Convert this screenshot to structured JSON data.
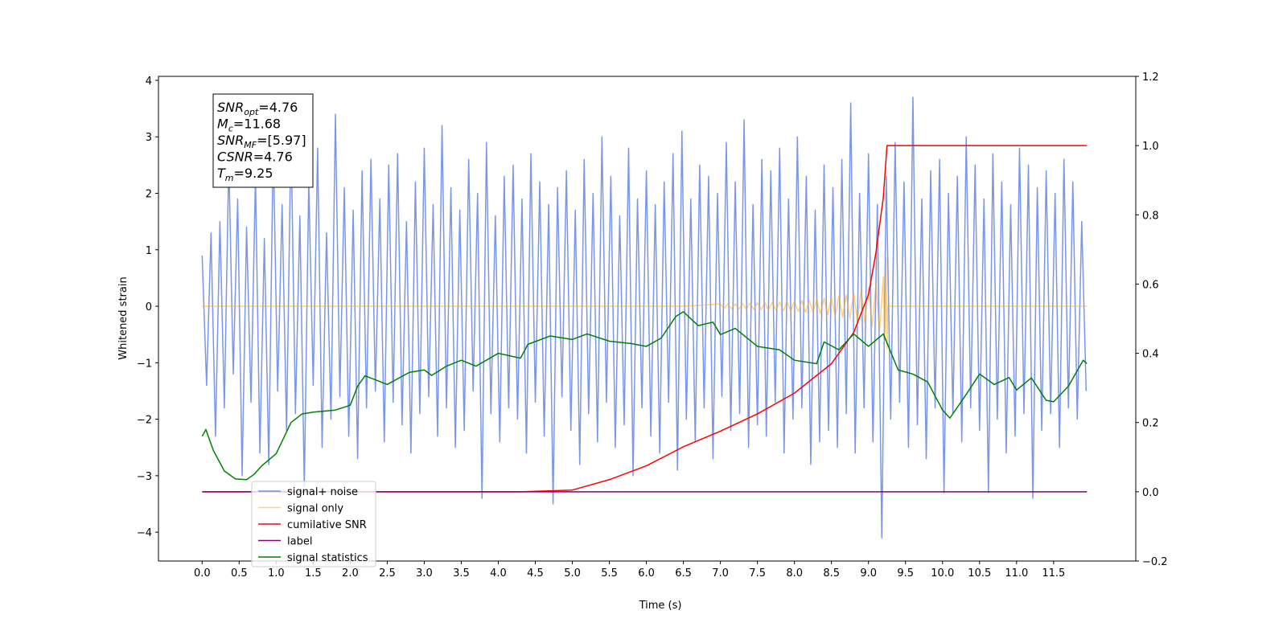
{
  "chart_data": {
    "type": "line",
    "xlabel": "Time (s)",
    "ylabel": "Whitened strain",
    "xlim": [
      -0.59,
      12.61
    ],
    "ylim": [
      -4.51,
      4.07
    ],
    "y2lim": [
      -0.2,
      1.2
    ],
    "xticks": [
      {
        "value": 0,
        "label": "0.0"
      },
      {
        "value": 0.5,
        "label": "0.5"
      },
      {
        "value": 1,
        "label": "1.0"
      },
      {
        "value": 1.5,
        "label": "1.5"
      },
      {
        "value": 2,
        "label": "2.0"
      },
      {
        "value": 2.5,
        "label": "2.5"
      },
      {
        "value": 3,
        "label": "3.0"
      },
      {
        "value": 3.5,
        "label": "3.5"
      },
      {
        "value": 4,
        "label": "4.0"
      },
      {
        "value": 4.5,
        "label": "4.5"
      },
      {
        "value": 5,
        "label": "5.0"
      },
      {
        "value": 5.5,
        "label": "5.5"
      },
      {
        "value": 6,
        "label": "6.0"
      },
      {
        "value": 6.5,
        "label": "6.5"
      },
      {
        "value": 7,
        "label": "7.0"
      },
      {
        "value": 7.5,
        "label": "7.5"
      },
      {
        "value": 8,
        "label": "8.0"
      },
      {
        "value": 8.5,
        "label": "8.5"
      },
      {
        "value": 9,
        "label": "9.0"
      },
      {
        "value": 9.5,
        "label": "9.5"
      },
      {
        "value": 10,
        "label": "10.0"
      },
      {
        "value": 10.5,
        "label": "10.5"
      },
      {
        "value": 11,
        "label": "11.0"
      },
      {
        "value": 11.5,
        "label": "11.5"
      }
    ],
    "yticks": [
      {
        "value": -4,
        "label": "−4"
      },
      {
        "value": -3,
        "label": "−3"
      },
      {
        "value": -2,
        "label": "−2"
      },
      {
        "value": -1,
        "label": "−1"
      },
      0,
      1,
      2,
      3,
      4
    ],
    "y2ticks": [
      {
        "value": -0.2,
        "label": "−0.2"
      },
      {
        "value": 0,
        "label": "0.0"
      },
      {
        "value": 0.2,
        "label": "0.2"
      },
      {
        "value": 0.4,
        "label": "0.4"
      },
      {
        "value": 0.6,
        "label": "0.6"
      },
      {
        "value": 0.8,
        "label": "0.8"
      },
      {
        "value": 1,
        "label": "1.0"
      },
      {
        "value": 1.2,
        "label": "1.2"
      }
    ],
    "annotations": [
      {
        "symbol": "SNR",
        "sub": "opt",
        "text": "=4.76"
      },
      {
        "symbol": "M",
        "sub": "c",
        "text": "=11.68"
      },
      {
        "symbol": "SNR",
        "sub": "MF",
        "text": "=[5.97]"
      },
      {
        "symbol": "CSNR",
        "text": "=4.76"
      },
      {
        "symbol": "T",
        "sub": "m",
        "text": "=9.25"
      }
    ],
    "series": [
      {
        "name": "signal+ noise",
        "color": "#4169e1",
        "opacity": 0.7,
        "x": [
          0,
          0.06,
          0.12,
          0.18,
          0.24,
          0.3,
          0.36,
          0.42,
          0.48,
          0.54,
          0.6,
          0.66,
          0.72,
          0.78,
          0.84,
          0.9,
          0.96,
          1.02,
          1.08,
          1.14,
          1.2,
          1.26,
          1.32,
          1.38,
          1.44,
          1.5,
          1.56,
          1.62,
          1.68,
          1.74,
          1.8,
          1.86,
          1.92,
          1.98,
          2.04,
          2.1,
          2.16,
          2.22,
          2.28,
          2.34,
          2.4,
          2.46,
          2.52,
          2.58,
          2.64,
          2.7,
          2.76,
          2.82,
          2.88,
          2.94,
          3.0,
          3.06,
          3.12,
          3.18,
          3.24,
          3.3,
          3.36,
          3.42,
          3.48,
          3.54,
          3.6,
          3.66,
          3.72,
          3.78,
          3.84,
          3.9,
          3.96,
          4.02,
          4.08,
          4.14,
          4.2,
          4.26,
          4.32,
          4.38,
          4.44,
          4.5,
          4.56,
          4.62,
          4.68,
          4.74,
          4.8,
          4.86,
          4.92,
          4.98,
          5.04,
          5.1,
          5.16,
          5.22,
          5.28,
          5.34,
          5.4,
          5.46,
          5.52,
          5.58,
          5.64,
          5.7,
          5.76,
          5.82,
          5.88,
          5.94,
          6.0,
          6.06,
          6.12,
          6.18,
          6.24,
          6.3,
          6.36,
          6.42,
          6.48,
          6.54,
          6.6,
          6.66,
          6.72,
          6.78,
          6.84,
          6.9,
          6.96,
          7.02,
          7.08,
          7.14,
          7.2,
          7.26,
          7.32,
          7.38,
          7.44,
          7.5,
          7.56,
          7.62,
          7.68,
          7.74,
          7.8,
          7.86,
          7.92,
          7.98,
          8.04,
          8.1,
          8.16,
          8.22,
          8.28,
          8.34,
          8.4,
          8.46,
          8.52,
          8.58,
          8.64,
          8.7,
          8.76,
          8.82,
          8.88,
          8.94,
          9.0,
          9.06,
          9.12,
          9.18,
          9.24,
          9.3,
          9.36,
          9.42,
          9.48,
          9.54,
          9.6,
          9.66,
          9.72,
          9.78,
          9.84,
          9.9,
          9.96,
          10.02,
          10.08,
          10.14,
          10.2,
          10.26,
          10.32,
          10.38,
          10.44,
          10.5,
          10.56,
          10.62,
          10.68,
          10.74,
          10.8,
          10.86,
          10.92,
          10.98,
          11.04,
          11.1,
          11.16,
          11.22,
          11.28,
          11.34,
          11.4,
          11.46,
          11.52,
          11.58,
          11.64,
          11.7,
          11.76,
          11.82,
          11.88,
          11.94
        ],
        "values": [
          0.9,
          -1.4,
          1.3,
          -2.3,
          1.5,
          -1.8,
          2.6,
          -1.2,
          1.9,
          -3.0,
          1.4,
          -1.7,
          2.3,
          -2.6,
          1.2,
          -2.8,
          2.9,
          -1.5,
          1.8,
          -2.2,
          3.1,
          -1.9,
          1.6,
          -3.2,
          2.2,
          -1.4,
          2.8,
          -2.5,
          1.3,
          -2.0,
          3.4,
          -1.6,
          2.1,
          -2.3,
          1.7,
          -2.7,
          2.4,
          -1.8,
          2.6,
          -1.5,
          1.9,
          -2.4,
          2.5,
          -1.7,
          2.7,
          -2.1,
          1.5,
          -2.6,
          2.2,
          -1.9,
          2.8,
          -1.6,
          1.8,
          -2.3,
          3.2,
          -1.8,
          2.1,
          -2.5,
          1.7,
          -2.2,
          2.6,
          -1.5,
          2.0,
          -3.4,
          2.9,
          -1.9,
          1.6,
          -2.4,
          2.3,
          -1.8,
          2.5,
          -2.0,
          1.9,
          -2.6,
          2.7,
          -1.7,
          2.2,
          -2.3,
          1.8,
          -3.5,
          2.1,
          -1.6,
          2.4,
          -2.2,
          1.7,
          -2.8,
          2.6,
          -1.9,
          2.0,
          -2.4,
          3.0,
          -1.7,
          2.3,
          -2.5,
          1.6,
          -2.1,
          2.8,
          -3.0,
          1.9,
          -1.8,
          2.4,
          -2.3,
          1.8,
          -2.6,
          2.2,
          -1.7,
          2.7,
          -2.9,
          3.1,
          -2.0,
          1.9,
          -2.4,
          2.5,
          -1.8,
          2.3,
          -2.7,
          2.0,
          -1.6,
          2.9,
          -2.2,
          2.2,
          -1.9,
          3.3,
          -2.5,
          1.8,
          -2.1,
          2.6,
          -2.3,
          2.4,
          -1.7,
          2.8,
          -2.6,
          1.9,
          -2.0,
          3.0,
          -1.8,
          2.3,
          -2.8,
          1.7,
          -2.4,
          2.5,
          -2.2,
          2.1,
          -2.5,
          2.6,
          -1.9,
          3.6,
          -2.6,
          2.0,
          -1.8,
          2.7,
          -2.4,
          1.8,
          -4.1,
          2.3,
          -2.0,
          2.9,
          -1.7,
          2.2,
          -2.5,
          3.7,
          -2.1,
          1.9,
          -2.7,
          2.4,
          -1.8,
          2.6,
          -3.3,
          2.0,
          -1.9,
          2.3,
          -2.4,
          3.0,
          -1.8,
          2.5,
          -2.2,
          1.9,
          -3.3,
          2.7,
          -2.0,
          2.2,
          -2.6,
          1.8,
          -2.3,
          2.8,
          -1.9,
          2.5,
          -3.4,
          2.1,
          -2.2,
          2.4,
          -1.9,
          2.0,
          -2.5,
          2.6,
          -1.8,
          2.2,
          -2.0,
          1.5,
          -1.5
        ]
      },
      {
        "name": "signal only",
        "color": "#ffa500",
        "opacity": 0.5,
        "x": [
          0,
          6.5,
          7.0,
          7.05,
          7.1,
          7.15,
          7.2,
          7.25,
          7.3,
          7.35,
          7.4,
          7.45,
          7.5,
          7.55,
          7.6,
          7.65,
          7.7,
          7.75,
          7.8,
          7.85,
          7.9,
          7.95,
          8.0,
          8.05,
          8.1,
          8.15,
          8.2,
          8.25,
          8.3,
          8.35,
          8.4,
          8.45,
          8.5,
          8.55,
          8.6,
          8.65,
          8.7,
          8.75,
          8.8,
          8.85,
          8.9,
          8.95,
          9.0,
          9.05,
          9.1,
          9.15,
          9.2,
          9.22,
          9.24,
          9.25,
          9.26,
          11.95
        ],
        "values": [
          0,
          0,
          0.04,
          -0.04,
          0.04,
          -0.045,
          0.045,
          -0.05,
          0.05,
          -0.05,
          0.055,
          -0.055,
          0.06,
          -0.06,
          0.065,
          -0.065,
          0.07,
          -0.07,
          0.075,
          -0.08,
          0.08,
          -0.085,
          0.09,
          -0.095,
          0.1,
          -0.105,
          0.11,
          -0.115,
          0.12,
          -0.13,
          0.14,
          -0.15,
          0.16,
          -0.17,
          0.18,
          -0.19,
          0.2,
          -0.22,
          0.24,
          -0.26,
          0.28,
          -0.3,
          0.32,
          -0.35,
          0.4,
          -0.45,
          0.52,
          -0.6,
          0.85,
          -0.75,
          0,
          0
        ]
      },
      {
        "name": "cumilative SNR",
        "color": "#ff0000",
        "axis": "y2",
        "x": [
          0,
          4.3,
          5.0,
          5.5,
          6.0,
          6.5,
          7.0,
          7.5,
          8.0,
          8.5,
          8.8,
          9.0,
          9.1,
          9.2,
          9.25,
          11.95
        ],
        "values": [
          0,
          0,
          0.005,
          0.035,
          0.075,
          0.13,
          0.175,
          0.225,
          0.285,
          0.37,
          0.46,
          0.57,
          0.69,
          0.85,
          1.0,
          1.0
        ]
      },
      {
        "name": "label",
        "color": "#800080",
        "axis": "y2",
        "x": [
          0,
          11.95
        ],
        "values": [
          0,
          0
        ]
      },
      {
        "name": "signal statistics",
        "color": "#008000",
        "axis": "y2",
        "x": [
          0,
          0.05,
          0.15,
          0.3,
          0.45,
          0.6,
          0.7,
          0.8,
          1.0,
          1.1,
          1.2,
          1.35,
          1.5,
          1.8,
          2.0,
          2.1,
          2.2,
          2.5,
          2.8,
          3.0,
          3.1,
          3.3,
          3.5,
          3.7,
          4.0,
          4.3,
          4.4,
          4.7,
          5.0,
          5.2,
          5.5,
          5.8,
          6.0,
          6.2,
          6.4,
          6.5,
          6.7,
          6.9,
          7.0,
          7.2,
          7.5,
          7.8,
          8.0,
          8.3,
          8.4,
          8.6,
          8.8,
          9.0,
          9.2,
          9.4,
          9.6,
          9.8,
          10.0,
          10.1,
          10.3,
          10.5,
          10.7,
          10.9,
          11.0,
          11.2,
          11.4,
          11.5,
          11.7,
          11.9,
          11.95
        ],
        "values": [
          0.16,
          0.18,
          0.12,
          0.06,
          0.037,
          0.035,
          0.05,
          0.074,
          0.11,
          0.155,
          0.2,
          0.225,
          0.23,
          0.236,
          0.25,
          0.305,
          0.335,
          0.31,
          0.345,
          0.352,
          0.336,
          0.363,
          0.38,
          0.363,
          0.4,
          0.386,
          0.426,
          0.45,
          0.44,
          0.456,
          0.435,
          0.428,
          0.42,
          0.444,
          0.507,
          0.52,
          0.48,
          0.49,
          0.454,
          0.472,
          0.42,
          0.41,
          0.38,
          0.37,
          0.433,
          0.41,
          0.456,
          0.42,
          0.456,
          0.352,
          0.34,
          0.317,
          0.236,
          0.213,
          0.275,
          0.34,
          0.31,
          0.33,
          0.294,
          0.329,
          0.264,
          0.26,
          0.305,
          0.38,
          0.37
        ]
      }
    ]
  }
}
